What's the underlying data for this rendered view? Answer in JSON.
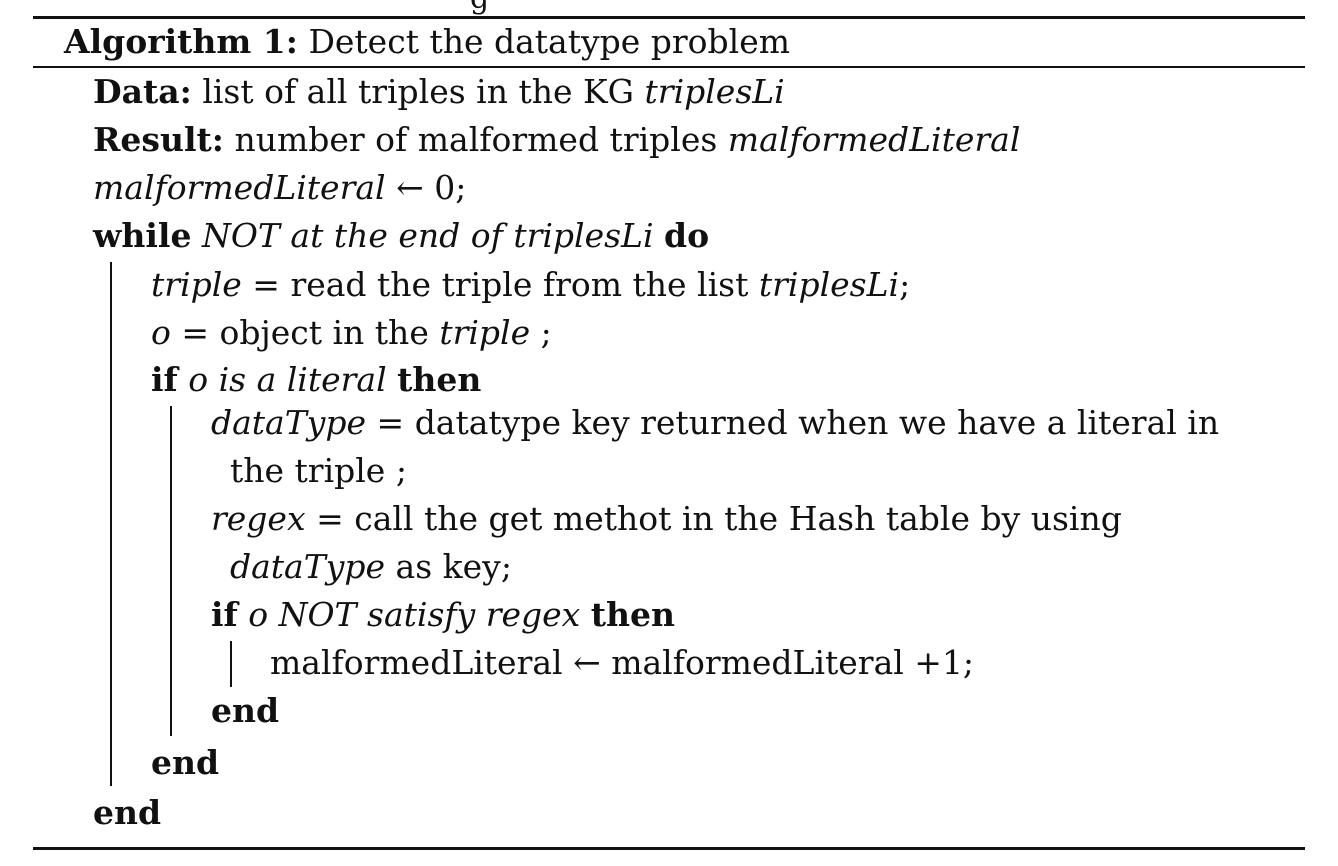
{
  "algorithm": {
    "label": "Algorithm 1:",
    "title": "Detect the datatype problem",
    "cut_heading_fragment": "g",
    "data_kw": "Data:",
    "data_text": "list of all triples in the KG",
    "data_var": "triplesLi",
    "result_kw": "Result:",
    "result_text": "number of malformed triples",
    "result_var": "malformedLiteral",
    "init_var": "malformedLiteral",
    "init_rest": "← 0;",
    "while_kw": "while",
    "while_cond": "NOT at the end of triplesLi",
    "do_kw": "do",
    "triple_var": "triple",
    "triple_eq": " = ",
    "triple_text": "read the triple from the list",
    "triple_list": "triplesLi",
    "triple_end": ";",
    "o_var": "o",
    "o_eq": " = ",
    "o_text": "object in the",
    "o_triple": "triple",
    "o_end": " ;",
    "if1_kw": "if",
    "if1_cond": "o is a literal",
    "then1_kw": "then",
    "dt_var": "dataType",
    "dt_eq": " = ",
    "dt_text": "datatype key returned when we have a literal in",
    "dt_cont": "the triple ;",
    "rg_var": "regex",
    "rg_eq": " = ",
    "rg_text": "call the get methot in the Hash table by using",
    "rg_cont_var": "dataType",
    "rg_cont_text": "as key;",
    "if2_kw": "if",
    "if2_cond": "o NOT satisfy regex",
    "then2_kw": "then",
    "incr": "malformedLiteral ← malformedLiteral +1;",
    "end_kw": "end"
  }
}
